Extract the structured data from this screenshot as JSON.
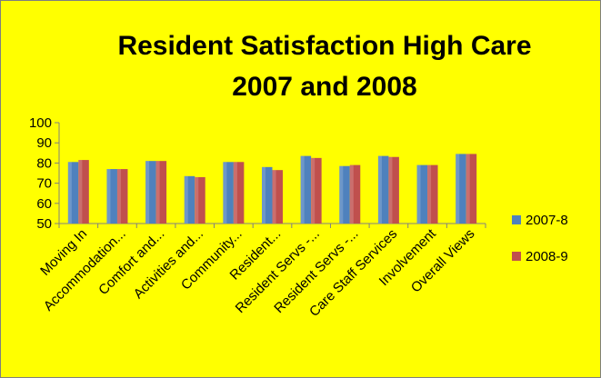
{
  "chart_data": {
    "type": "bar",
    "title_lines": [
      "Resident Satisfaction High Care",
      "2007 and 2008"
    ],
    "categories": [
      "Moving In",
      "Accommodation...",
      "Comfort and...",
      "Activities and...",
      "Community...",
      "Resident...",
      "Resident Servs -...",
      "Resident Servs -...",
      "Care Staff Services",
      "Involvement",
      "Overall Views"
    ],
    "series": [
      {
        "name": "2007-8",
        "values": [
          80.5,
          77,
          81,
          73.5,
          80.5,
          78,
          83.5,
          78.5,
          83.5,
          79,
          84.5
        ]
      },
      {
        "name": "2008-9",
        "values": [
          81.5,
          77,
          81,
          73,
          80.5,
          76.5,
          82.5,
          79,
          83,
          79,
          84.5
        ]
      }
    ],
    "ylim": [
      50,
      100
    ],
    "yticks": [
      50,
      60,
      70,
      80,
      90,
      100
    ],
    "grid": false,
    "legend_position": "right",
    "colors": {
      "background": "#ffff00",
      "series": [
        "#4f81bd",
        "#c0504d"
      ],
      "axis": "#808080"
    }
  }
}
